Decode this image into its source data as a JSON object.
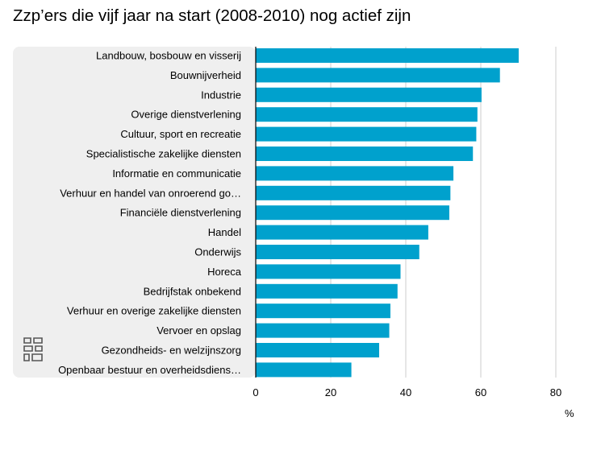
{
  "chart_data": {
    "type": "bar",
    "orientation": "horizontal",
    "title": "Zzp’ers die vijf jaar na start (2008-2010) nog actief zijn",
    "unit": "%",
    "categories": [
      "Landbouw, bosbouw en visserij",
      "Bouwnijverheid",
      "Industrie",
      "Overige dienstverlening",
      "Cultuur, sport en recreatie",
      "Specialistische zakelijke diensten",
      "Informatie en communicatie",
      "Verhuur en handel van onroerend go…",
      "Financiële dienstverlening",
      "Handel",
      "Onderwijs",
      "Horeca",
      "Bedrijfstak onbekend",
      "Verhuur en overige zakelijke diensten",
      "Vervoer en opslag",
      "Gezondheids- en welzijnszorg",
      "Openbaar bestuur en overheidsdiens…"
    ],
    "values": [
      70.1,
      65.1,
      60.2,
      59.1,
      58.8,
      57.9,
      52.7,
      51.9,
      51.6,
      46.0,
      43.6,
      38.6,
      37.8,
      35.9,
      35.6,
      32.9,
      25.5
    ],
    "xlim": [
      0,
      80
    ],
    "xticks": [
      "0",
      "20",
      "40",
      "60",
      "80"
    ],
    "grid": true,
    "colors": {
      "bar": "#00a1cd",
      "grid": "#cccccc",
      "label_panel": "#efefef",
      "axis": "#000000",
      "logo": "#555555"
    }
  },
  "logo_icon": "cbs-logo-icon"
}
